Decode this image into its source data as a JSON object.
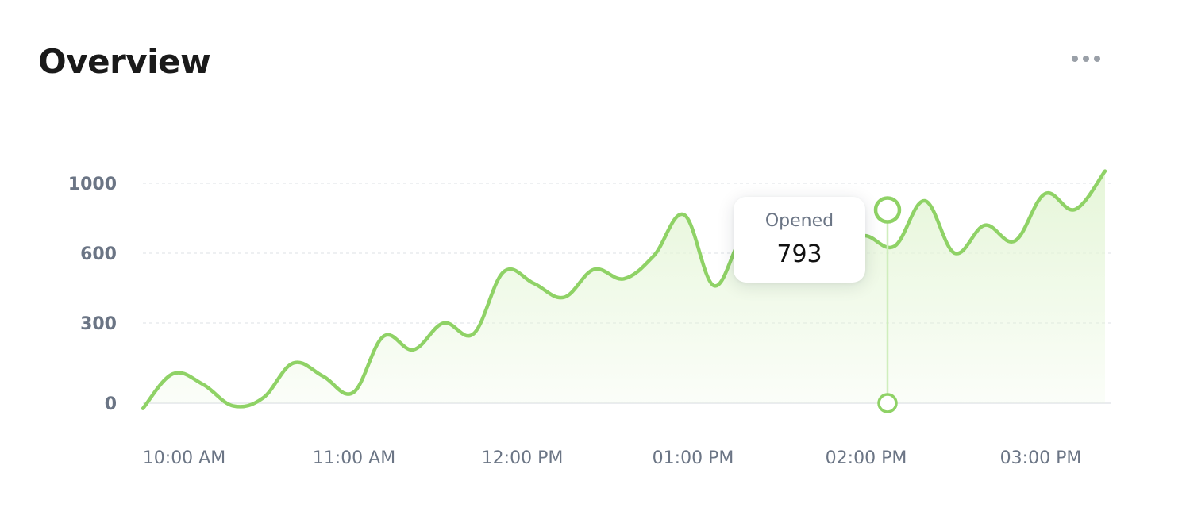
{
  "card": {
    "title": "Overview",
    "menu_icon": "more-horizontal-icon"
  },
  "colors": {
    "line": "#8fd266",
    "area": "#e6f6d9",
    "grid": "#e3e6ea",
    "axis_text": "#6b7585"
  },
  "tooltip": {
    "label": "Opened",
    "value": "793"
  },
  "chart_data": {
    "type": "area",
    "x_labels": [
      "10:00 AM",
      "11:00 AM",
      "12:00 PM",
      "01:00 PM",
      "02:00 PM",
      "03:00 PM"
    ],
    "y_ticks": [
      0,
      300,
      600,
      1000
    ],
    "ylim": [
      0,
      1000
    ],
    "grid": true,
    "series": [
      {
        "values": [
          -20,
          110,
          70,
          -10,
          20,
          150,
          100,
          40,
          250,
          200,
          300,
          260,
          520,
          470,
          410,
          530,
          490,
          590,
          820,
          460,
          700,
          600,
          620,
          640,
          700,
          640,
          900,
          600,
          760,
          670,
          940,
          850,
          1070
        ]
      }
    ],
    "highlight": {
      "series_label": "Opened",
      "value": 793,
      "x": "02:00 PM"
    }
  }
}
